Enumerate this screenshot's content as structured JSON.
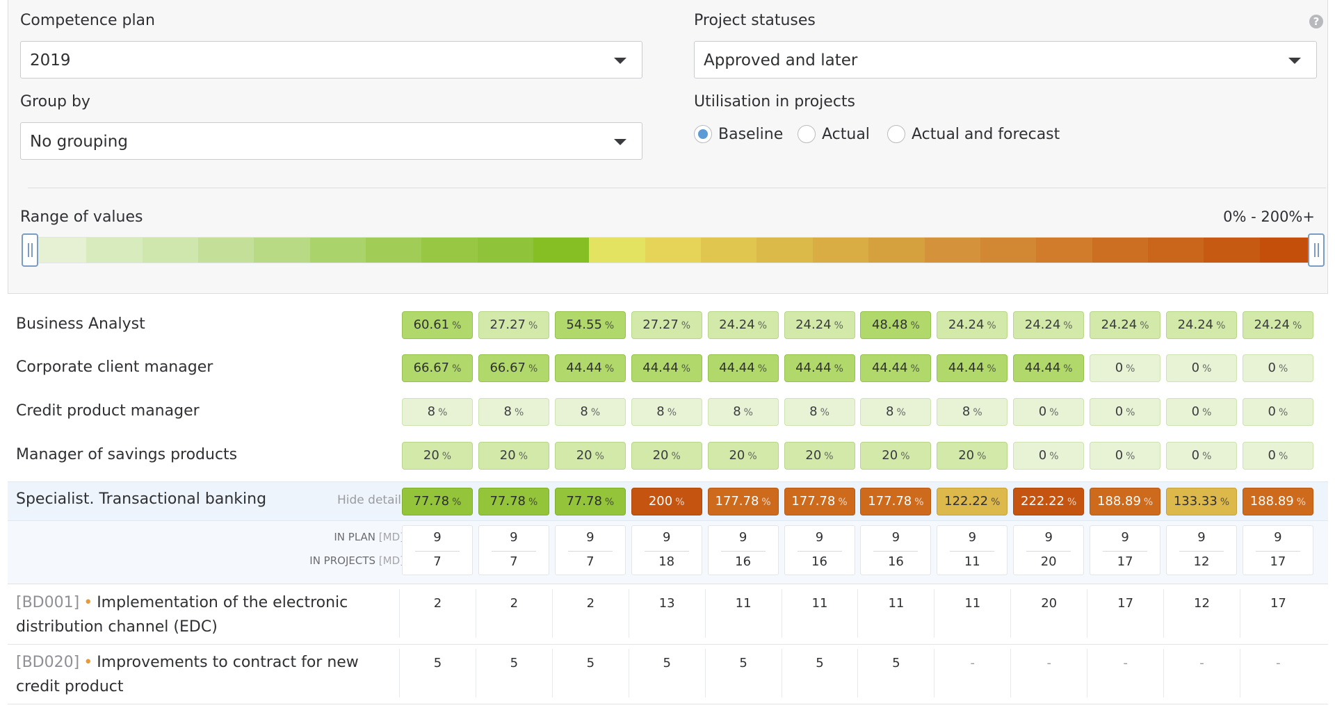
{
  "filters": {
    "competence_plan": {
      "label": "Competence plan",
      "value": "2019"
    },
    "project_statuses": {
      "label": "Project statuses",
      "value": "Approved and later"
    },
    "group_by": {
      "label": "Group by",
      "value": "No grouping"
    },
    "utilisation": {
      "label": "Utilisation in projects",
      "options": [
        "Baseline",
        "Actual",
        "Actual and forecast"
      ],
      "selected": "Baseline"
    },
    "range": {
      "label": "Range of values",
      "value": "0% - 200%+",
      "gradient_colors": [
        "#e6f1d4",
        "#d8ebbd",
        "#cfe6ad",
        "#c4e098",
        "#b9da84",
        "#abd36b",
        "#a1cd56",
        "#98c843",
        "#8fc33a",
        "#86bf24",
        "#e3e261",
        "#e5d457",
        "#e0c64f",
        "#dcba4a",
        "#d9ad44",
        "#d5a13f",
        "#d4933a",
        "#d28833",
        "#d07c2b",
        "#cd6f22",
        "#ca651c",
        "#c75a13",
        "#c44f0a"
      ]
    },
    "help_icon": "question-circle-icon"
  },
  "rows": [
    {
      "name": "Business Analyst",
      "values": [
        "60.61",
        "27.27",
        "54.55",
        "27.27",
        "24.24",
        "24.24",
        "48.48",
        "24.24",
        "24.24",
        "24.24",
        "24.24",
        "24.24"
      ],
      "levels": [
        "c",
        "b",
        "c",
        "b",
        "b",
        "b",
        "c",
        "b",
        "b",
        "b",
        "b",
        "b"
      ]
    },
    {
      "name": "Corporate client manager",
      "values": [
        "66.67",
        "66.67",
        "44.44",
        "44.44",
        "44.44",
        "44.44",
        "44.44",
        "44.44",
        "44.44",
        "0",
        "0",
        "0"
      ],
      "levels": [
        "c",
        "c",
        "c",
        "c",
        "c",
        "c",
        "c",
        "c",
        "c",
        "a",
        "a",
        "a"
      ]
    },
    {
      "name": "Credit product manager",
      "values": [
        "8",
        "8",
        "8",
        "8",
        "8",
        "8",
        "8",
        "8",
        "0",
        "0",
        "0",
        "0"
      ],
      "levels": [
        "a",
        "a",
        "a",
        "a",
        "a",
        "a",
        "a",
        "a",
        "a",
        "a",
        "a",
        "a"
      ]
    },
    {
      "name": "Manager of savings products",
      "values": [
        "20",
        "20",
        "20",
        "20",
        "20",
        "20",
        "20",
        "20",
        "0",
        "0",
        "0",
        "0"
      ],
      "levels": [
        "b",
        "b",
        "b",
        "b",
        "b",
        "b",
        "b",
        "b",
        "a",
        "a",
        "a",
        "a"
      ]
    },
    {
      "name": "Specialist. Transactional banking",
      "values": [
        "77.78",
        "77.78",
        "77.78",
        "200",
        "177.78",
        "177.78",
        "177.78",
        "122.22",
        "222.22",
        "188.89",
        "133.33",
        "188.89"
      ],
      "levels": [
        "d",
        "d",
        "d",
        "h",
        "g",
        "g",
        "g",
        "e",
        "h",
        "g",
        "e",
        "g"
      ],
      "hide_details": "Hide details"
    }
  ],
  "pct_symbol": "%",
  "details": {
    "in_plan_label": "IN PLAN",
    "in_projects_label": "IN PROJECTS",
    "unit": "[MD]",
    "in_plan": [
      "9",
      "9",
      "9",
      "9",
      "9",
      "9",
      "9",
      "9",
      "9",
      "9",
      "9",
      "9"
    ],
    "in_projects": [
      "7",
      "7",
      "7",
      "18",
      "16",
      "16",
      "16",
      "11",
      "20",
      "17",
      "12",
      "17"
    ]
  },
  "projects": [
    {
      "code": "[BD001]",
      "name": "Implementation of the electronic distribution channel (EDC)",
      "values": [
        "2",
        "2",
        "2",
        "13",
        "11",
        "11",
        "11",
        "11",
        "20",
        "17",
        "12",
        "17"
      ]
    },
    {
      "code": "[BD020]",
      "name": "Improvements to contract for new credit product",
      "values": [
        "5",
        "5",
        "5",
        "5",
        "5",
        "5",
        "5",
        "-",
        "-",
        "-",
        "-",
        "-"
      ]
    }
  ]
}
